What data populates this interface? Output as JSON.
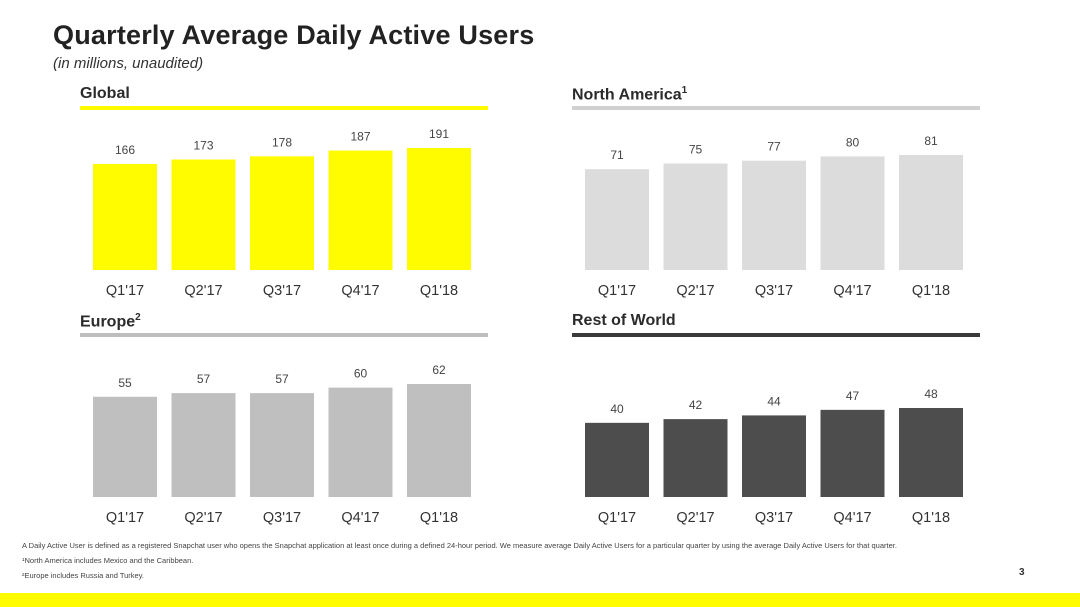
{
  "title": "Quarterly Average Daily Active Users",
  "subtitle": "(in millions, unaudited)",
  "chart_data": [
    {
      "type": "bar",
      "title": "Global",
      "categories": [
        "Q1'17",
        "Q2'17",
        "Q3'17",
        "Q4'17",
        "Q1'18"
      ],
      "values": [
        166,
        173,
        178,
        187,
        191
      ],
      "bar_color": "#FFFC00",
      "line_color": "#FFFC00"
    },
    {
      "type": "bar",
      "title": "North America",
      "title_sup": "1",
      "categories": [
        "Q1'17",
        "Q2'17",
        "Q3'17",
        "Q4'17",
        "Q1'18"
      ],
      "values": [
        71,
        75,
        77,
        80,
        81
      ],
      "bar_color": "#DCDCDC",
      "line_color": "#D0D0D0"
    },
    {
      "type": "bar",
      "title": "Europe",
      "title_sup": "2",
      "categories": [
        "Q1'17",
        "Q2'17",
        "Q3'17",
        "Q4'17",
        "Q1'18"
      ],
      "values": [
        55,
        57,
        57,
        60,
        62
      ],
      "bar_color": "#BFBFBF",
      "line_color": "#BDBDBD"
    },
    {
      "type": "bar",
      "title": "Rest of World",
      "categories": [
        "Q1'17",
        "Q2'17",
        "Q3'17",
        "Q4'17",
        "Q1'18"
      ],
      "values": [
        40,
        42,
        44,
        47,
        48
      ],
      "bar_color": "#4D4D4D",
      "line_color": "#3A3A3A"
    }
  ],
  "footnotes": [
    "A Daily Active User is defined as a registered Snapchat user who opens the Snapchat application at least once during a defined 24-hour period.  We measure average Daily Active Users for a particular quarter by using the average Daily Active Users for that quarter.",
    "¹North America includes Mexico and the Caribbean.",
    "²Europe includes Russia and Turkey."
  ],
  "page_number": "3",
  "brand_color": "#FFFC00"
}
